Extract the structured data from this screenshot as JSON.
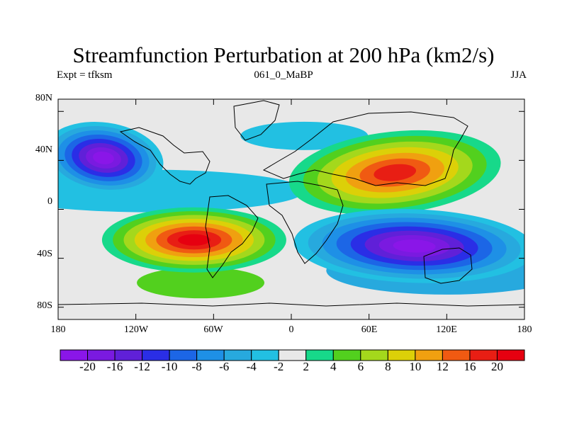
{
  "title": "Streamfunction Perturbation at 200 hPa (km2/s)",
  "subtitle_left": "Expt = tfksm",
  "subtitle_center": "061_0_MaBP",
  "subtitle_right": "JJA",
  "map": {
    "projection": "cylindrical-equidistant",
    "lon_range": [
      -180,
      180
    ],
    "lat_range": [
      -90,
      90
    ],
    "lon_tick_labels": [
      "180",
      "120W",
      "60W",
      "0",
      "60E",
      "120E",
      "180"
    ],
    "lat_tick_labels": [
      "80N",
      "40N",
      "0",
      "40S",
      "80S"
    ],
    "continent_outlines": true
  },
  "colorbar": {
    "labels": [
      "-20",
      "-16",
      "-12",
      "-10",
      "-8",
      "-6",
      "-4",
      "-2",
      "2",
      "4",
      "6",
      "8",
      "10",
      "12",
      "16",
      "20"
    ],
    "colors": [
      "#8a16e8",
      "#7a1ae0",
      "#6020d8",
      "#2a2ee6",
      "#1c66e6",
      "#1e90e6",
      "#27a9de",
      "#22c0e2",
      "#e8e8e8",
      "#17d98a",
      "#52d01e",
      "#a4d81c",
      "#dcd008",
      "#f0a010",
      "#f05a12",
      "#e81e14",
      "#e60010"
    ]
  },
  "fields": [
    {
      "name": "north-atlantic-low",
      "sign": "negative",
      "peak": -20,
      "lon": -145,
      "lat": 42
    },
    {
      "name": "eurasia-high",
      "sign": "positive",
      "peak": 16,
      "lon": 80,
      "lat": 30
    },
    {
      "name": "south-america-high",
      "sign": "positive",
      "peak": 20,
      "lon": -75,
      "lat": -25
    },
    {
      "name": "indian-ocean-low",
      "sign": "negative",
      "peak": -20,
      "lon": 95,
      "lat": -30
    }
  ]
}
